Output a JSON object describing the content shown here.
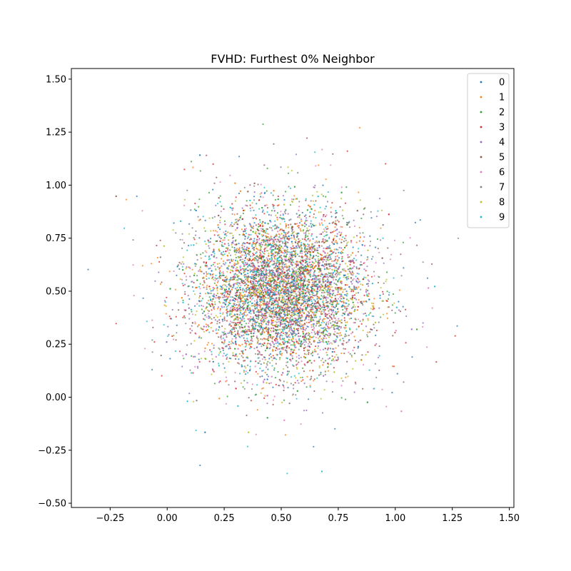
{
  "chart_data": {
    "type": "scatter",
    "title": "FVHD: Furthest 0% Neighbor",
    "xlabel": "",
    "ylabel": "",
    "xlim": [
      -0.42,
      1.52
    ],
    "ylim": [
      -0.52,
      1.55
    ],
    "xticks": [
      -0.25,
      0.0,
      0.25,
      0.5,
      0.75,
      1.0,
      1.25,
      1.5
    ],
    "xtick_labels": [
      "−0.25",
      "0.00",
      "0.25",
      "0.50",
      "0.75",
      "1.00",
      "1.25",
      "1.50"
    ],
    "yticks": [
      -0.5,
      -0.25,
      0.0,
      0.25,
      0.5,
      0.75,
      1.0,
      1.25,
      1.5
    ],
    "ytick_labels": [
      "−0.50",
      "−0.25",
      "0.00",
      "0.25",
      "0.50",
      "0.75",
      "1.00",
      "1.25",
      "1.50"
    ],
    "grid": false,
    "legend_position": "top-right",
    "distribution": {
      "shape": "dense roughly circular cloud of overlapping points",
      "center": [
        0.5,
        0.5
      ],
      "core_radius": 0.35,
      "full_extent": {
        "x": [
          -0.33,
          1.42
        ],
        "y": [
          -0.43,
          1.43
        ]
      }
    },
    "series": [
      {
        "name": "0",
        "color": "#1f77b4"
      },
      {
        "name": "1",
        "color": "#ff7f0e"
      },
      {
        "name": "2",
        "color": "#2ca02c"
      },
      {
        "name": "3",
        "color": "#d62728"
      },
      {
        "name": "4",
        "color": "#9467bd"
      },
      {
        "name": "5",
        "color": "#8c564b"
      },
      {
        "name": "6",
        "color": "#e377c2"
      },
      {
        "name": "7",
        "color": "#7f7f7f"
      },
      {
        "name": "8",
        "color": "#bcbd22"
      },
      {
        "name": "9",
        "color": "#17becf"
      }
    ]
  }
}
